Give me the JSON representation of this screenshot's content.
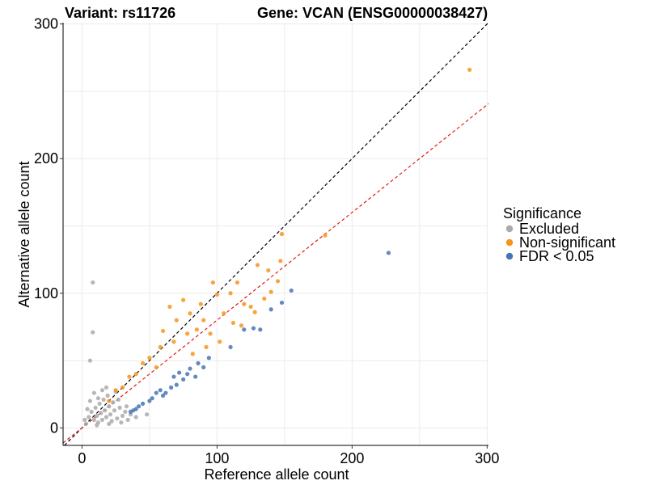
{
  "chart_data": {
    "type": "scatter",
    "title_left": "Variant: rs11726",
    "title_right": "Gene: VCAN (ENSG00000038427)",
    "xlabel": "Reference allele count",
    "ylabel": "Alternative allele count",
    "xlim": [
      -14,
      301
    ],
    "ylim": [
      -13,
      301
    ],
    "x_ticks": [
      0,
      100,
      200,
      300
    ],
    "y_ticks": [
      0,
      100,
      200,
      300
    ],
    "grid": true,
    "legend": {
      "title": "Significance",
      "position": "right",
      "entries": [
        {
          "name": "Excluded",
          "color": "#aaaaaa"
        },
        {
          "name": "Non-significant",
          "color": "#f7941d"
        },
        {
          "name": "FDR < 0.05",
          "color": "#4575b4"
        }
      ]
    },
    "reference_lines": [
      {
        "name": "identity",
        "slope": 1.0,
        "intercept": 0,
        "color": "#000000",
        "dash": "dashed"
      },
      {
        "name": "fit",
        "slope": 0.8,
        "intercept": 0,
        "color": "#e41a1c",
        "dash": "dashed"
      }
    ],
    "series": [
      {
        "name": "Excluded",
        "color": "#aaaaaa",
        "points": [
          {
            "x": 8,
            "y": 108
          },
          {
            "x": 8,
            "y": 71
          },
          {
            "x": 6,
            "y": 50
          },
          {
            "x": 3,
            "y": 3
          },
          {
            "x": 5,
            "y": 8
          },
          {
            "x": 7,
            "y": 12
          },
          {
            "x": 9,
            "y": 6
          },
          {
            "x": 10,
            "y": 15
          },
          {
            "x": 11,
            "y": 9
          },
          {
            "x": 12,
            "y": 4
          },
          {
            "x": 13,
            "y": 18
          },
          {
            "x": 14,
            "y": 11
          },
          {
            "x": 15,
            "y": 6
          },
          {
            "x": 16,
            "y": 21
          },
          {
            "x": 17,
            "y": 13
          },
          {
            "x": 18,
            "y": 8
          },
          {
            "x": 19,
            "y": 24
          },
          {
            "x": 20,
            "y": 16
          },
          {
            "x": 21,
            "y": 10
          },
          {
            "x": 22,
            "y": 5
          },
          {
            "x": 23,
            "y": 19
          },
          {
            "x": 24,
            "y": 13
          },
          {
            "x": 25,
            "y": 27
          },
          {
            "x": 26,
            "y": 7
          },
          {
            "x": 28,
            "y": 15
          },
          {
            "x": 30,
            "y": 9
          },
          {
            "x": 32,
            "y": 12
          },
          {
            "x": 34,
            "y": 6
          },
          {
            "x": 36,
            "y": 10
          },
          {
            "x": 40,
            "y": 8
          },
          {
            "x": 48,
            "y": 10
          },
          {
            "x": 6,
            "y": 20
          },
          {
            "x": 4,
            "y": 14
          },
          {
            "x": 9,
            "y": 26
          },
          {
            "x": 12,
            "y": 22
          },
          {
            "x": 15,
            "y": 28
          },
          {
            "x": 18,
            "y": 30
          },
          {
            "x": 2,
            "y": 6
          },
          {
            "x": 11,
            "y": 2
          },
          {
            "x": 20,
            "y": 3
          },
          {
            "x": 27,
            "y": 21
          },
          {
            "x": 29,
            "y": 4
          },
          {
            "x": 33,
            "y": 16
          }
        ]
      },
      {
        "name": "Non-significant",
        "color": "#f7941d",
        "points": [
          {
            "x": 287,
            "y": 266
          },
          {
            "x": 148,
            "y": 144
          },
          {
            "x": 180,
            "y": 143
          },
          {
            "x": 130,
            "y": 121
          },
          {
            "x": 138,
            "y": 117
          },
          {
            "x": 147,
            "y": 124
          },
          {
            "x": 145,
            "y": 109
          },
          {
            "x": 135,
            "y": 96
          },
          {
            "x": 120,
            "y": 92
          },
          {
            "x": 115,
            "y": 108
          },
          {
            "x": 110,
            "y": 100
          },
          {
            "x": 100,
            "y": 99
          },
          {
            "x": 105,
            "y": 85
          },
          {
            "x": 125,
            "y": 90
          },
          {
            "x": 97,
            "y": 108
          },
          {
            "x": 80,
            "y": 85
          },
          {
            "x": 85,
            "y": 73
          },
          {
            "x": 90,
            "y": 80
          },
          {
            "x": 95,
            "y": 70
          },
          {
            "x": 75,
            "y": 95
          },
          {
            "x": 70,
            "y": 80
          },
          {
            "x": 65,
            "y": 90
          },
          {
            "x": 60,
            "y": 72
          },
          {
            "x": 112,
            "y": 78
          },
          {
            "x": 102,
            "y": 64
          },
          {
            "x": 92,
            "y": 60
          },
          {
            "x": 82,
            "y": 55
          },
          {
            "x": 140,
            "y": 101
          },
          {
            "x": 128,
            "y": 86
          },
          {
            "x": 118,
            "y": 76
          },
          {
            "x": 88,
            "y": 92
          },
          {
            "x": 78,
            "y": 70
          },
          {
            "x": 68,
            "y": 64
          },
          {
            "x": 58,
            "y": 60
          },
          {
            "x": 50,
            "y": 52
          },
          {
            "x": 55,
            "y": 45
          },
          {
            "x": 45,
            "y": 48
          },
          {
            "x": 40,
            "y": 40
          },
          {
            "x": 35,
            "y": 38
          },
          {
            "x": 30,
            "y": 30
          },
          {
            "x": 25,
            "y": 28
          },
          {
            "x": 20,
            "y": 20
          }
        ]
      },
      {
        "name": "FDR < 0.05",
        "color": "#4575b4",
        "points": [
          {
            "x": 227,
            "y": 130
          },
          {
            "x": 155,
            "y": 102
          },
          {
            "x": 148,
            "y": 93
          },
          {
            "x": 140,
            "y": 88
          },
          {
            "x": 132,
            "y": 73
          },
          {
            "x": 127,
            "y": 74
          },
          {
            "x": 120,
            "y": 73
          },
          {
            "x": 110,
            "y": 60
          },
          {
            "x": 90,
            "y": 45
          },
          {
            "x": 86,
            "y": 48
          },
          {
            "x": 80,
            "y": 44
          },
          {
            "x": 75,
            "y": 36
          },
          {
            "x": 78,
            "y": 40
          },
          {
            "x": 70,
            "y": 32
          },
          {
            "x": 68,
            "y": 38
          },
          {
            "x": 62,
            "y": 26
          },
          {
            "x": 58,
            "y": 28
          },
          {
            "x": 60,
            "y": 24
          },
          {
            "x": 55,
            "y": 26
          },
          {
            "x": 52,
            "y": 22
          },
          {
            "x": 50,
            "y": 20
          },
          {
            "x": 45,
            "y": 18
          },
          {
            "x": 42,
            "y": 16
          },
          {
            "x": 40,
            "y": 14
          },
          {
            "x": 38,
            "y": 13
          },
          {
            "x": 36,
            "y": 12
          },
          {
            "x": 66,
            "y": 30
          },
          {
            "x": 72,
            "y": 41
          },
          {
            "x": 84,
            "y": 38
          },
          {
            "x": 94,
            "y": 52
          }
        ]
      }
    ]
  }
}
